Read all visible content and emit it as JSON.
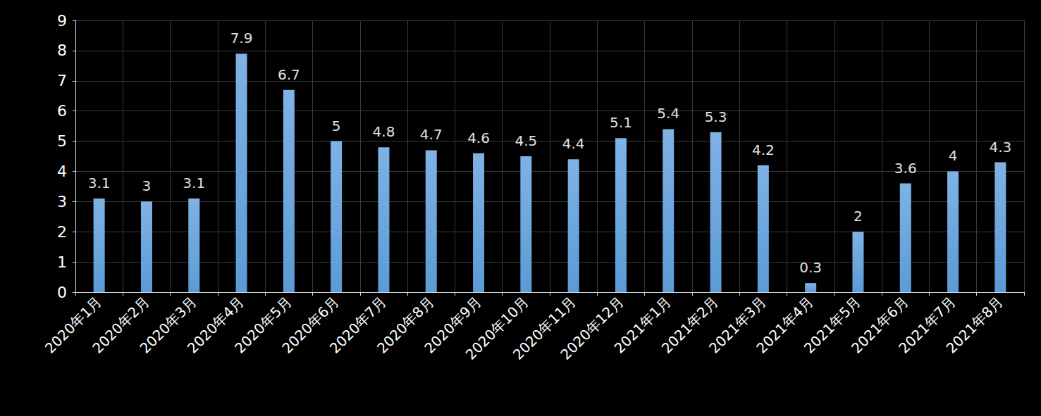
{
  "chart_data": {
    "type": "bar",
    "categories": [
      "2020年1月",
      "2020年2月",
      "2020年3月",
      "2020年4月",
      "2020年5月",
      "2020年6月",
      "2020年7月",
      "2020年8月",
      "2020年9月",
      "2020年10月",
      "2020年11月",
      "2020年12月",
      "2021年1月",
      "2021年2月",
      "2021年3月",
      "2021年4月",
      "2021年5月",
      "2021年6月",
      "2021年7月",
      "2021年8月"
    ],
    "values": [
      3.1,
      3,
      3.1,
      7.9,
      6.7,
      5,
      4.8,
      4.7,
      4.6,
      4.5,
      4.4,
      5.1,
      5.4,
      5.3,
      4.2,
      0.3,
      2,
      3.6,
      4,
      4.3
    ],
    "color": "#5b9bd5",
    "ylim": [
      0,
      9
    ],
    "yticks": [
      0,
      1,
      2,
      3,
      4,
      5,
      6,
      7,
      8,
      9
    ],
    "grid": true,
    "data_labels": true
  }
}
